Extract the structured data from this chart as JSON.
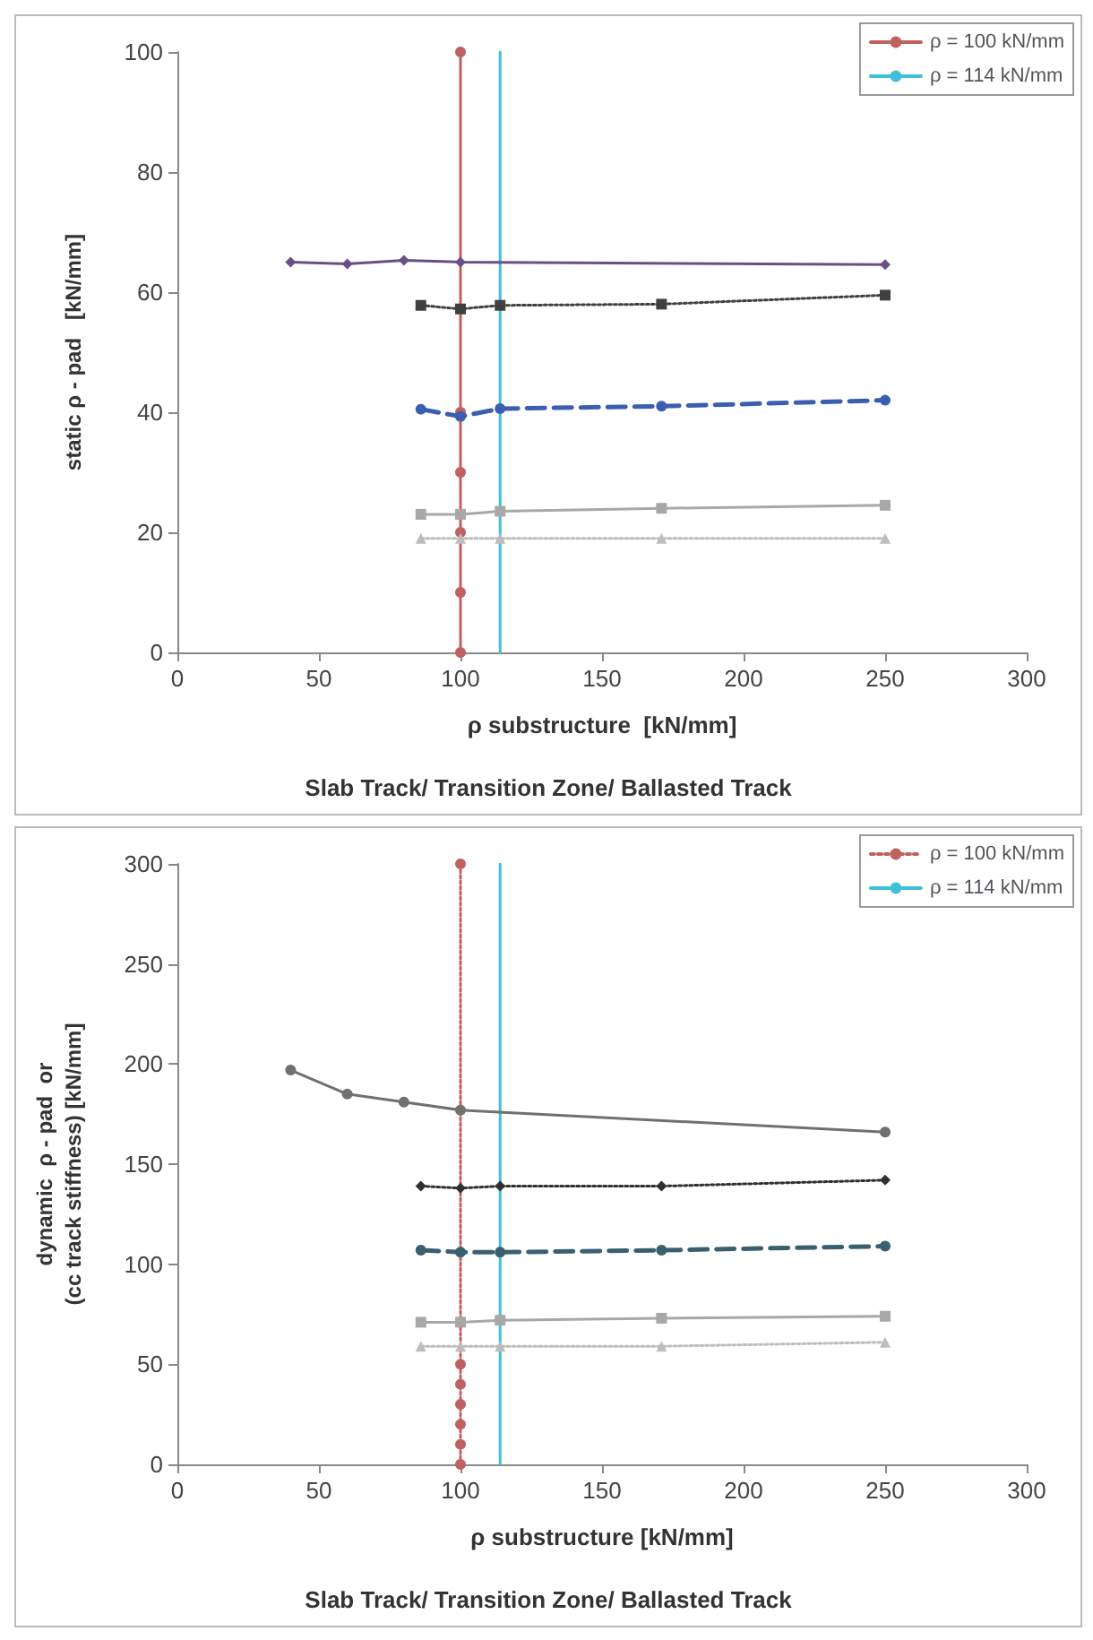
{
  "chart_data": [
    {
      "type": "line",
      "xlabel": "ρ substructure  [kN/mm]",
      "ylabel": "static ρ - pad   [kN/mm]",
      "annotations": [
        "Slab Track/ Transition Zone/ Ballasted Track"
      ],
      "xlim": [
        0,
        300
      ],
      "xticks": [
        0,
        50,
        100,
        150,
        200,
        250,
        300
      ],
      "ylim": [
        0,
        100
      ],
      "yticks": [
        0,
        20,
        40,
        60,
        80,
        100
      ],
      "grid": false,
      "legend": "top right",
      "series": [
        {
          "color": "#a8a8a8",
          "marker": "square",
          "line_style": "solid",
          "x": [
            86,
            100,
            114,
            171,
            250
          ],
          "values": [
            23,
            23,
            23.5,
            24,
            24.5
          ]
        },
        {
          "color": "#bdbdbd",
          "marker": "triangle",
          "line_style": "dotted",
          "x": [
            86,
            100,
            114,
            171,
            250
          ],
          "values": [
            19,
            19,
            19,
            19,
            19
          ]
        },
        {
          "color": "#3a5fb0",
          "marker": "circle",
          "line_style": "dashed",
          "x": [
            86,
            100,
            114,
            171,
            250
          ],
          "values": [
            40.5,
            39.3,
            40.6,
            41,
            42
          ]
        },
        {
          "color": "#404040",
          "marker": "square",
          "line_style": "dotted",
          "x": [
            86,
            100,
            114,
            171,
            250
          ],
          "values": [
            57.8,
            57.2,
            57.8,
            58,
            59.5
          ]
        },
        {
          "color": "#6a4f86",
          "marker": "diamond",
          "line_style": "solid",
          "x": [
            40,
            60,
            80,
            100,
            250
          ],
          "values": [
            65,
            64.7,
            65.3,
            65,
            64.6
          ]
        },
        {
          "name": "ρ = 100 kN/mm",
          "color": "#c06060",
          "marker": "circle",
          "line_style": "solid",
          "x": [
            100,
            100,
            100,
            100,
            100,
            100
          ],
          "values": [
            0,
            10,
            20,
            30,
            40,
            100
          ]
        },
        {
          "name": "ρ = 114 kN/mm",
          "color": "#40c0d8",
          "marker": "none",
          "line_style": "solid",
          "x": [
            114,
            114
          ],
          "values": [
            0,
            100
          ]
        }
      ]
    },
    {
      "type": "line",
      "xlabel": "ρ substructure [kN/mm]",
      "ylabel": "dynamic  ρ - pad  or\n(cc track stiffness) [kN/mm]",
      "annotations": [
        "Slab Track/ Transition Zone/ Ballasted Track"
      ],
      "xlim": [
        0,
        300
      ],
      "xticks": [
        0,
        50,
        100,
        150,
        200,
        250,
        300
      ],
      "ylim": [
        0,
        300
      ],
      "yticks": [
        0,
        50,
        100,
        150,
        200,
        250,
        300
      ],
      "grid": false,
      "legend": "top right",
      "series": [
        {
          "color": "#a8a8a8",
          "marker": "square",
          "line_style": "solid",
          "x": [
            86,
            100,
            114,
            171,
            250
          ],
          "values": [
            71,
            71,
            72,
            73,
            74
          ]
        },
        {
          "color": "#bdbdbd",
          "marker": "triangle",
          "line_style": "dotted",
          "x": [
            86,
            100,
            114,
            171,
            250
          ],
          "values": [
            59,
            59,
            59,
            59,
            61
          ]
        },
        {
          "color": "#3a6070",
          "marker": "circle",
          "line_style": "dashed",
          "x": [
            86,
            100,
            114,
            171,
            250
          ],
          "values": [
            107,
            106,
            106,
            107,
            109
          ]
        },
        {
          "color": "#303030",
          "marker": "diamond",
          "line_style": "dotted",
          "x": [
            86,
            100,
            114,
            171,
            250
          ],
          "values": [
            139,
            138,
            139,
            139,
            142
          ]
        },
        {
          "color": "#707070",
          "marker": "circle",
          "line_style": "solid",
          "x": [
            40,
            60,
            80,
            100,
            250
          ],
          "values": [
            197,
            185,
            181,
            177,
            166
          ]
        },
        {
          "name": "ρ = 100 kN/mm",
          "color": "#c06060",
          "marker": "circle",
          "line_style": "dotted",
          "x": [
            100,
            100,
            100,
            100,
            100,
            100,
            100
          ],
          "values": [
            0,
            10,
            20,
            30,
            40,
            50,
            300
          ]
        },
        {
          "name": "ρ = 114 kN/mm",
          "color": "#40c0d8",
          "marker": "none",
          "line_style": "solid",
          "x": [
            114,
            114
          ],
          "values": [
            0,
            300
          ]
        }
      ]
    }
  ]
}
